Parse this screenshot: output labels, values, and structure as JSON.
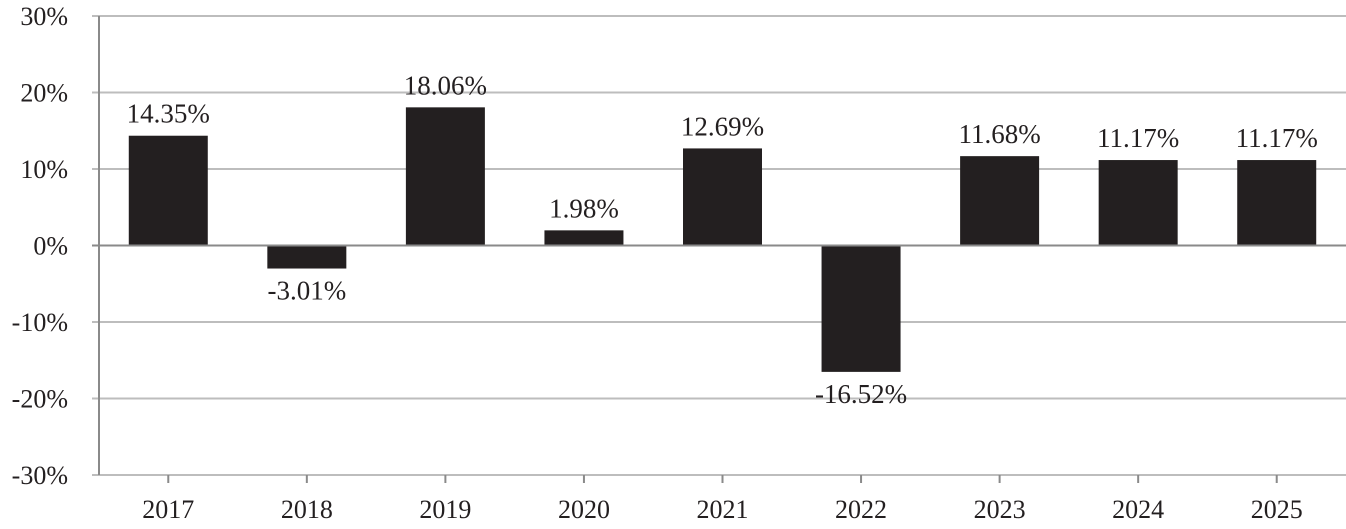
{
  "chart_data": {
    "type": "bar",
    "title": "",
    "xlabel": "",
    "ylabel": "",
    "categories": [
      "2017",
      "2018",
      "2019",
      "2020",
      "2021",
      "2022",
      "2023",
      "2024",
      "2025"
    ],
    "values": [
      14.35,
      -3.01,
      18.06,
      1.98,
      12.69,
      -16.52,
      11.68,
      11.17,
      11.17
    ],
    "value_labels": [
      "14.35%",
      "-3.01%",
      "18.06%",
      "1.98%",
      "12.69%",
      "-16.52%",
      "11.68%",
      "11.17%",
      "11.17%"
    ],
    "ylim": [
      -30,
      30
    ],
    "yticks": [
      30,
      20,
      10,
      0,
      -10,
      -20,
      -30
    ],
    "ytick_labels": [
      "30%",
      "20%",
      "10%",
      "0%",
      "-10%",
      "-20%",
      "-30%"
    ],
    "grid": true,
    "legend": "none",
    "colors": {
      "bar": "#231f20",
      "grid": "#bdbdbd",
      "text": "#231f20"
    }
  }
}
